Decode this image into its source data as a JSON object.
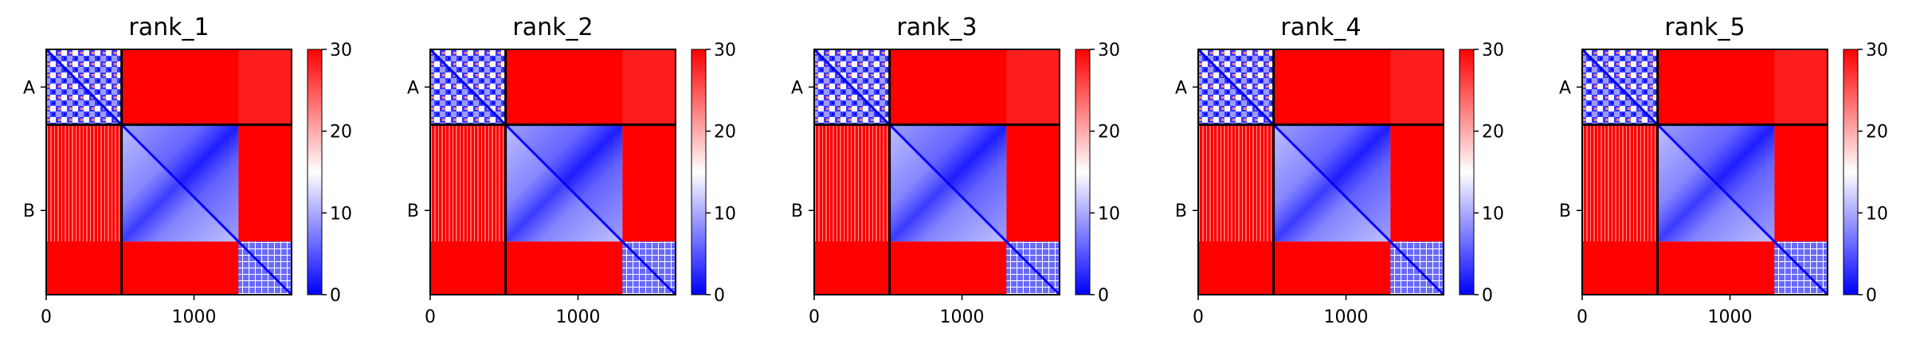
{
  "chart_data": {
    "type": "heatmap",
    "panels": [
      {
        "title": "rank_1"
      },
      {
        "title": "rank_2"
      },
      {
        "title": "rank_3"
      },
      {
        "title": "rank_4"
      },
      {
        "title": "rank_5"
      }
    ],
    "x_range": [
      0,
      1660
    ],
    "y_range": [
      0,
      1660
    ],
    "x_ticks": [
      {
        "value": 0,
        "label": "0"
      },
      {
        "value": 1000,
        "label": "1000"
      }
    ],
    "y_ticks": [
      {
        "value": 255,
        "label": "A"
      },
      {
        "value": 1090,
        "label": "B"
      }
    ],
    "chain_boundaries": [
      510
    ],
    "b_subdomain_boundary": 1300,
    "colorbar": {
      "range": [
        0,
        30
      ],
      "ticks": [
        {
          "value": 0,
          "label": "0"
        },
        {
          "value": 10,
          "label": "10"
        },
        {
          "value": 20,
          "label": "20"
        },
        {
          "value": 30,
          "label": "30"
        }
      ],
      "colormap": [
        "#0000ff",
        "#ffffff",
        "#ff0000"
      ]
    },
    "grid": false
  }
}
